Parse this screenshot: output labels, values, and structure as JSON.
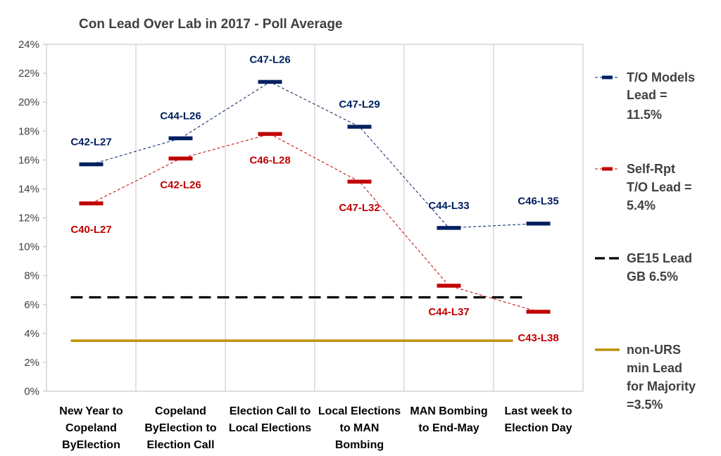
{
  "chart_data": {
    "type": "line",
    "title": "Con Lead Over Lab in 2017 - Poll Average",
    "categories": [
      [
        "New Year to",
        "Copeland",
        "ByElection"
      ],
      [
        "Copeland",
        "ByElection to",
        "Election Call"
      ],
      [
        "Election Call to",
        "Local Elections"
      ],
      [
        "Local Elections",
        "to MAN",
        "Bombing"
      ],
      [
        "MAN Bombing",
        "to End-May"
      ],
      [
        "Last week to",
        "Election Day"
      ]
    ],
    "ylim": [
      0,
      24
    ],
    "yticks": [
      "0%",
      "2%",
      "4%",
      "6%",
      "8%",
      "10%",
      "12%",
      "14%",
      "16%",
      "18%",
      "20%",
      "22%",
      "24%"
    ],
    "grid": "vertical",
    "legend_position": "right",
    "series": [
      {
        "name": [
          "T/O Models",
          "Lead =",
          "11.5%"
        ],
        "color": "#002060",
        "style": "dashed-marker",
        "values": [
          15.7,
          17.5,
          21.4,
          18.3,
          11.3,
          11.6
        ],
        "labels": [
          "C42-L27",
          "C44-L26",
          "C47-L26",
          "C47-L29",
          "C44-L33",
          "C46-L35"
        ],
        "label_position": "above"
      },
      {
        "name": [
          "Self-Rpt",
          "T/O Lead =",
          "5.4%"
        ],
        "color": "#c00000",
        "style": "dashed-marker",
        "values": [
          13.0,
          16.1,
          17.8,
          14.5,
          7.3,
          5.5
        ],
        "labels": [
          "C40-L27",
          "C42-L26",
          "C46-L28",
          "C47-L32",
          "C44-L37",
          "C43-L38"
        ],
        "label_position": "below"
      },
      {
        "name": [
          "GE15 Lead",
          "GB 6.5%"
        ],
        "color": "#000000",
        "style": "dashed",
        "constant": 6.5
      },
      {
        "name": [
          "non-URS",
          "min Lead",
          "for Majority",
          "=3.5%"
        ],
        "color": "#c09000",
        "style": "solid",
        "constant": 3.5
      }
    ]
  }
}
